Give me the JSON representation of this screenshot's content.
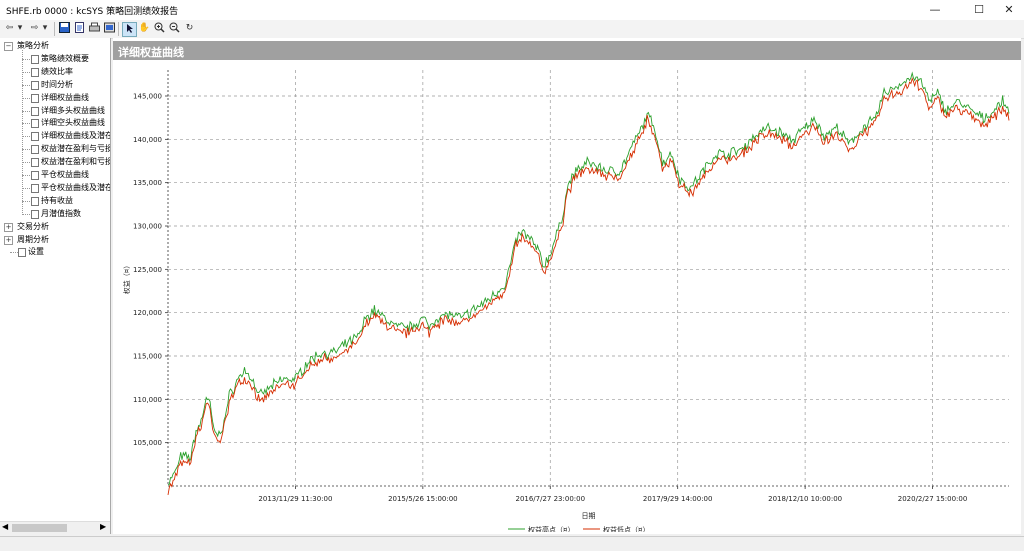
{
  "window": {
    "title": "SHFE.rb 0000 : kcSYS 策略回测绩效报告",
    "minimize": "—",
    "maximize": "☐",
    "close": "✕"
  },
  "toolbar": {
    "icons": [
      "back-icon",
      "dropdown-icon",
      "forward-icon",
      "dropdown-icon",
      "save-icon",
      "export-icon",
      "print-icon",
      "preview-icon",
      "pointer-icon",
      "hand-icon",
      "zoom-in-icon",
      "zoom-out-icon",
      "reset-icon"
    ]
  },
  "tree": {
    "groups": [
      {
        "label": "策略分析",
        "expanded": true,
        "items": [
          "策略绩效概要",
          "绩效比率",
          "时间分析",
          "详细权益曲线",
          "详细多头权益曲线",
          "详细空头权益曲线",
          "详细权益曲线及潜在",
          "权益潜在盈利与亏损",
          "权益潜在盈利和亏损",
          "平仓权益曲线",
          "平仓权益曲线及潜在",
          "持有收益",
          "月潜值指数"
        ]
      },
      {
        "label": "交易分析",
        "expanded": false,
        "items": []
      },
      {
        "label": "周期分析",
        "expanded": false,
        "items": []
      }
    ],
    "settings": "设置"
  },
  "chart": {
    "header": "详细权益曲线"
  },
  "chart_data": {
    "type": "line",
    "ylabel": "权益（¤）",
    "xlabel": "日期",
    "ylim": [
      100000,
      148000
    ],
    "yticks": [
      "105,000",
      "110,000",
      "115,000",
      "120,000",
      "125,000",
      "130,000",
      "135,000",
      "140,000",
      "145,000"
    ],
    "ytick_values": [
      105000,
      110000,
      115000,
      120000,
      125000,
      130000,
      135000,
      140000,
      145000
    ],
    "xticks": [
      "2013/11/29 11:30:00",
      "2015/5/26 15:00:00",
      "2016/7/27 23:00:00",
      "2017/9/29 14:00:00",
      "2018/12/10 10:00:00",
      "2020/2/27 15:00:00"
    ],
    "xtick_index": [
      100,
      200,
      300,
      400,
      500,
      600
    ],
    "x_count": 660,
    "grid": true,
    "legend_position": "bottom",
    "colors": {
      "high": "#2ca02c",
      "low": "#d62d00"
    },
    "series": [
      {
        "name": "权益高点（¤）",
        "color": "#2ca02c"
      },
      {
        "name": "权益低点（¤）",
        "color": "#d62d00"
      }
    ],
    "keypoints": [
      [
        0,
        100000
      ],
      [
        5,
        101000
      ],
      [
        10,
        103000
      ],
      [
        18,
        103000
      ],
      [
        22,
        106000
      ],
      [
        26,
        107000
      ],
      [
        30,
        110000
      ],
      [
        33,
        109000
      ],
      [
        36,
        106000
      ],
      [
        40,
        105500
      ],
      [
        44,
        107000
      ],
      [
        48,
        110000
      ],
      [
        55,
        112000
      ],
      [
        60,
        113000
      ],
      [
        66,
        112000
      ],
      [
        72,
        110000
      ],
      [
        80,
        111000
      ],
      [
        90,
        112000
      ],
      [
        100,
        112000
      ],
      [
        110,
        114000
      ],
      [
        120,
        115000
      ],
      [
        130,
        115000
      ],
      [
        140,
        116000
      ],
      [
        150,
        117000
      ],
      [
        155,
        119000
      ],
      [
        162,
        120000
      ],
      [
        170,
        119000
      ],
      [
        180,
        118000
      ],
      [
        190,
        118000
      ],
      [
        200,
        119000
      ],
      [
        205,
        118000
      ],
      [
        210,
        119000
      ],
      [
        220,
        119500
      ],
      [
        230,
        119000
      ],
      [
        240,
        120000
      ],
      [
        250,
        121000
      ],
      [
        265,
        123000
      ],
      [
        270,
        126000
      ],
      [
        273,
        128000
      ],
      [
        278,
        129000
      ],
      [
        285,
        128000
      ],
      [
        290,
        127000
      ],
      [
        295,
        125000
      ],
      [
        300,
        126500
      ],
      [
        306,
        129000
      ],
      [
        310,
        131000
      ],
      [
        313,
        134000
      ],
      [
        320,
        136000
      ],
      [
        330,
        137000
      ],
      [
        345,
        136000
      ],
      [
        355,
        136000
      ],
      [
        365,
        139000
      ],
      [
        372,
        141000
      ],
      [
        376,
        142500
      ],
      [
        382,
        141000
      ],
      [
        388,
        137000
      ],
      [
        395,
        138000
      ],
      [
        402,
        135000
      ],
      [
        410,
        134000
      ],
      [
        420,
        136000
      ],
      [
        430,
        138000
      ],
      [
        440,
        138000
      ],
      [
        450,
        138500
      ],
      [
        460,
        140000
      ],
      [
        470,
        141000
      ],
      [
        480,
        140500
      ],
      [
        490,
        139500
      ],
      [
        500,
        141000
      ],
      [
        508,
        142000
      ],
      [
        515,
        140000
      ],
      [
        525,
        141000
      ],
      [
        535,
        139000
      ],
      [
        545,
        141000
      ],
      [
        555,
        142000
      ],
      [
        562,
        145000
      ],
      [
        575,
        146000
      ],
      [
        585,
        147000
      ],
      [
        592,
        146000
      ],
      [
        598,
        144000
      ],
      [
        604,
        145000
      ],
      [
        610,
        143000
      ],
      [
        620,
        144000
      ],
      [
        630,
        143000
      ],
      [
        640,
        142000
      ],
      [
        648,
        143000
      ],
      [
        655,
        144000
      ],
      [
        660,
        143000
      ]
    ]
  }
}
